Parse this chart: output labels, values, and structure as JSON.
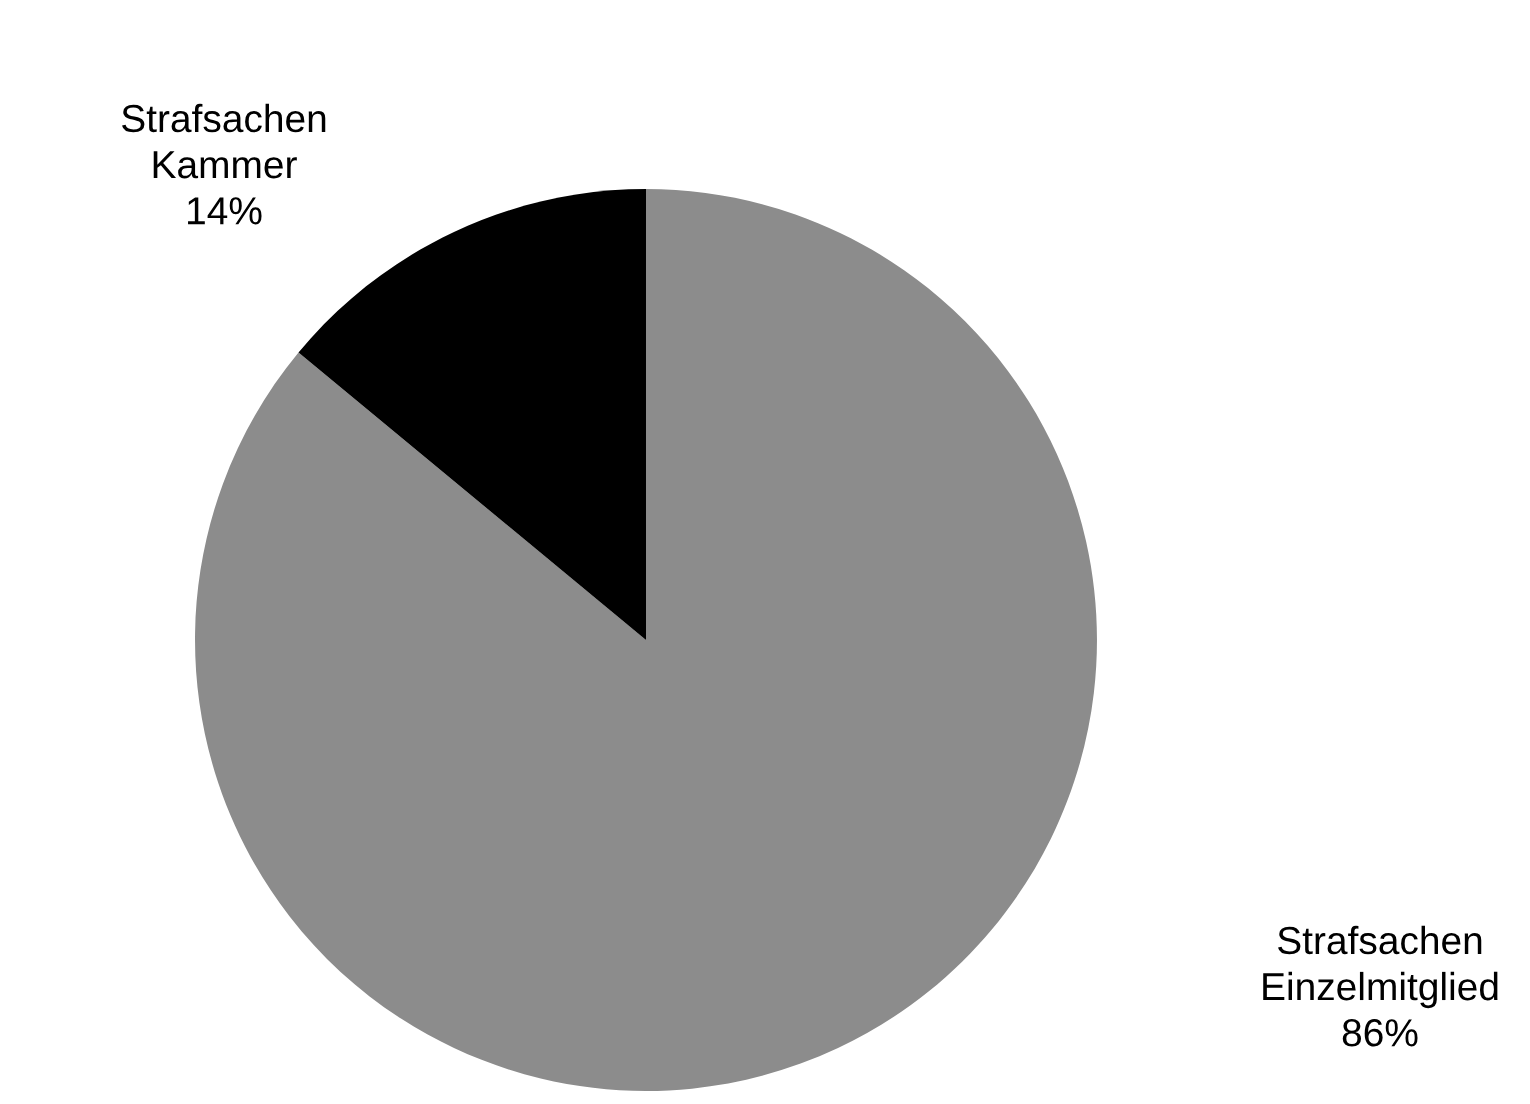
{
  "chart_data": {
    "type": "pie",
    "categories": [
      "Strafsachen\nEinzelmitglied",
      "Strafsachen\nKammer"
    ],
    "values": [
      86,
      14
    ],
    "colors": [
      "#8c8c8c",
      "#000000"
    ],
    "value_labels": [
      "86%",
      "14%"
    ]
  }
}
